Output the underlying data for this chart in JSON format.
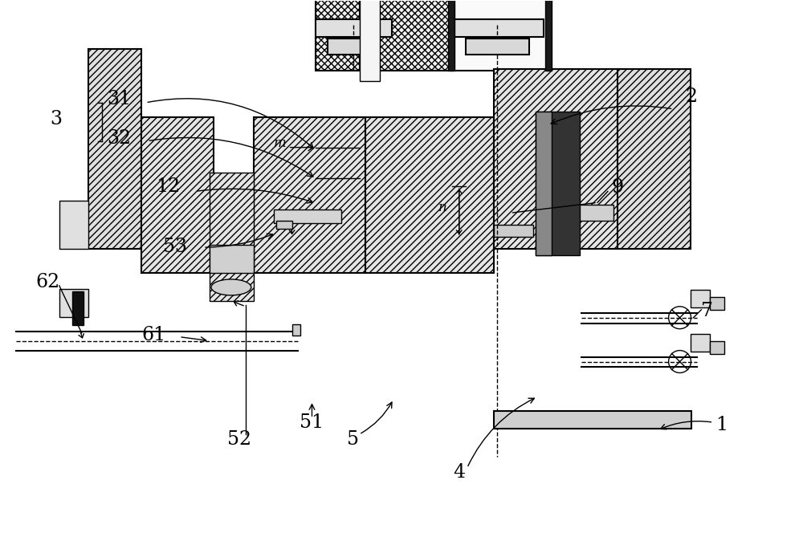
{
  "bg_color": "#ffffff",
  "line_color": "#000000",
  "dark": "#111111",
  "gray_fill": "#e8e8e8",
  "light_fill": "#f5f5f5"
}
